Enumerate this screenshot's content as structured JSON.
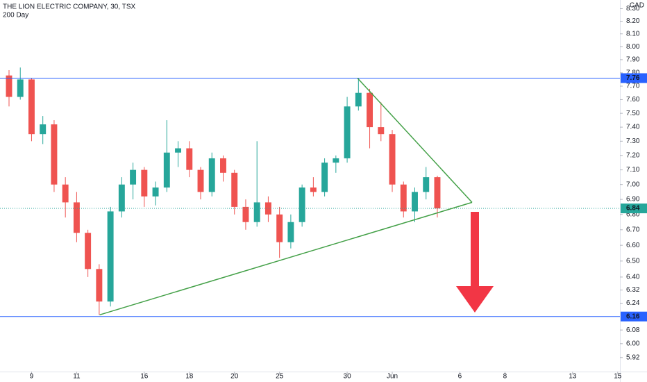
{
  "chart_data": {
    "type": "candlestick",
    "title": "THE LION ELECTRIC COMPANY, 30, TSX",
    "subtitle": "200 Day",
    "currency": "CAD",
    "log_scale": true,
    "up_color": "#26a69a",
    "down_color": "#ef5350",
    "xlim": [
      -1.4,
      26.1
    ],
    "ylim": [
      5.84,
      8.37
    ],
    "xticks": [
      {
        "value": 0,
        "label": "9"
      },
      {
        "value": 2,
        "label": "11"
      },
      {
        "value": 5,
        "label": "16"
      },
      {
        "value": 7,
        "label": "18"
      },
      {
        "value": 9,
        "label": "20"
      },
      {
        "value": 11,
        "label": "25"
      },
      {
        "value": 14,
        "label": "30"
      },
      {
        "value": 16,
        "label": "Jun"
      },
      {
        "value": 19,
        "label": "6"
      },
      {
        "value": 21,
        "label": "8"
      },
      {
        "value": 24,
        "label": "13"
      },
      {
        "value": 26,
        "label": "15"
      }
    ],
    "yticks": [
      {
        "value": 8.3,
        "label": "8.30"
      },
      {
        "value": 8.2,
        "label": "8.20"
      },
      {
        "value": 8.1,
        "label": "8.10"
      },
      {
        "value": 8,
        "label": "8.00"
      },
      {
        "value": 7.9,
        "label": "7.90"
      },
      {
        "value": 7.8,
        "label": "7.80"
      },
      {
        "value": 7.7,
        "label": "7.70"
      },
      {
        "value": 7.6,
        "label": "7.60"
      },
      {
        "value": 7.5,
        "label": "7.50"
      },
      {
        "value": 7.4,
        "label": "7.40"
      },
      {
        "value": 7.3,
        "label": "7.30"
      },
      {
        "value": 7.2,
        "label": "7.20"
      },
      {
        "value": 7.1,
        "label": "7.10"
      },
      {
        "value": 7,
        "label": "7.00"
      },
      {
        "value": 6.9,
        "label": "6.90"
      },
      {
        "value": 6.8,
        "label": "6.80"
      },
      {
        "value": 6.7,
        "label": "6.70"
      },
      {
        "value": 6.6,
        "label": "6.60"
      },
      {
        "value": 6.5,
        "label": "6.50"
      },
      {
        "value": 6.4,
        "label": "6.40"
      },
      6.32,
      6.24,
      6.08,
      {
        "value": 6,
        "label": "6.00"
      },
      5.92
    ],
    "candles": {
      "x": [
        -1,
        -0.5,
        0,
        0.5,
        1,
        1.5,
        2,
        2.5,
        3,
        3.5,
        4,
        4.5,
        5,
        5.5,
        6,
        6.5,
        7,
        7.5,
        8,
        8.5,
        9,
        9.5,
        10,
        10.5,
        11,
        11.5,
        12,
        12.5,
        13,
        13.5,
        14,
        14.5,
        15,
        15.5,
        16,
        16.5,
        17,
        17.5,
        18
      ],
      "open": [
        7.78,
        7.62,
        7.75,
        7.35,
        7.42,
        7.0,
        6.88,
        6.68,
        6.45,
        6.25,
        6.82,
        7.0,
        7.1,
        6.92,
        6.98,
        7.22,
        7.25,
        7.1,
        6.95,
        7.18,
        7.08,
        6.85,
        6.75,
        6.88,
        6.8,
        6.62,
        6.75,
        6.98,
        6.95,
        7.15,
        7.18,
        7.55,
        7.65,
        7.4,
        7.35,
        7.0,
        6.82,
        6.95,
        7.05
      ],
      "high": [
        7.82,
        7.84,
        7.76,
        7.48,
        7.45,
        7.05,
        6.95,
        6.7,
        6.48,
        6.85,
        7.05,
        7.15,
        7.12,
        7.02,
        7.45,
        7.3,
        7.3,
        7.12,
        7.22,
        7.2,
        7.1,
        6.9,
        7.3,
        6.92,
        6.85,
        6.8,
        7.0,
        7.05,
        7.18,
        7.2,
        7.62,
        7.76,
        7.68,
        7.58,
        7.38,
        7.02,
        6.98,
        7.12,
        7.06
      ],
      "low": [
        7.55,
        7.6,
        7.3,
        7.28,
        6.95,
        6.78,
        6.62,
        6.4,
        6.17,
        6.22,
        6.78,
        6.9,
        6.85,
        6.86,
        6.95,
        7.12,
        7.05,
        6.9,
        6.92,
        7.02,
        6.8,
        6.7,
        6.72,
        6.75,
        6.52,
        6.58,
        6.72,
        6.92,
        6.92,
        7.08,
        7.15,
        7.52,
        7.25,
        7.3,
        6.95,
        6.78,
        6.75,
        6.9,
        6.78
      ],
      "close": [
        7.62,
        7.75,
        7.35,
        7.42,
        7.0,
        6.88,
        6.68,
        6.45,
        6.25,
        6.82,
        7.0,
        7.1,
        6.92,
        6.98,
        7.22,
        7.25,
        7.1,
        6.95,
        7.18,
        7.08,
        6.85,
        6.75,
        6.88,
        6.8,
        6.62,
        6.75,
        6.98,
        6.95,
        7.15,
        7.18,
        7.55,
        7.65,
        7.4,
        7.35,
        7.0,
        6.82,
        6.95,
        7.05,
        6.84
      ]
    },
    "horizontal_lines": [
      {
        "value": 7.76,
        "color": "#2962ff"
      },
      {
        "value": 6.16,
        "color": "#2962ff"
      }
    ],
    "last_price": {
      "value": 6.84,
      "color": "#26a69a"
    },
    "trendlines": [
      {
        "x": [
          3.02,
          19.54
        ],
        "y": [
          6.17,
          6.88
        ],
        "color": "#43a047"
      },
      {
        "x": [
          14.46,
          19.54
        ],
        "y": [
          7.76,
          6.88
        ],
        "color": "#43a047"
      }
    ]
  }
}
